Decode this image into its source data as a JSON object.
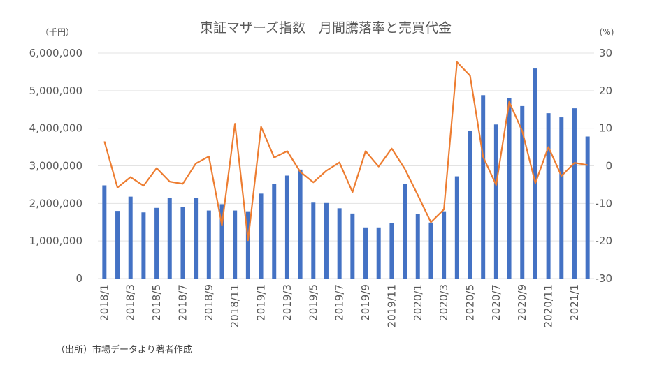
{
  "chart_data": {
    "type": "bar+line",
    "title": "東証マザーズ指数　月間騰落率と売買代金",
    "left_unit": "（千円）",
    "right_unit": "(%)",
    "source": "（出所）市場データより著者作成",
    "categories": [
      "2018/1",
      "2018/2",
      "2018/3",
      "2018/4",
      "2018/5",
      "2018/6",
      "2018/7",
      "2018/8",
      "2018/9",
      "2018/10",
      "2018/11",
      "2018/12",
      "2019/1",
      "2019/2",
      "2019/3",
      "2019/4",
      "2019/5",
      "2019/6",
      "2019/7",
      "2019/8",
      "2019/9",
      "2019/10",
      "2019/11",
      "2019/12",
      "2020/1",
      "2020/2",
      "2020/3",
      "2020/4",
      "2020/5",
      "2020/6",
      "2020/7",
      "2020/8",
      "2020/9",
      "2020/10",
      "2020/11",
      "2020/12",
      "2021/1",
      "2021/2"
    ],
    "x_tick_labels": [
      "2018/1",
      "",
      "2018/3",
      "",
      "2018/5",
      "",
      "2018/7",
      "",
      "2018/9",
      "",
      "2018/11",
      "",
      "2019/1",
      "",
      "2019/3",
      "",
      "2019/5",
      "",
      "2019/7",
      "",
      "2019/9",
      "",
      "2019/11",
      "",
      "2020/1",
      "",
      "2020/3",
      "",
      "2020/5",
      "",
      "2020/7",
      "",
      "2020/9",
      "",
      "2020/11",
      "",
      "2021/1",
      ""
    ],
    "left_axis": {
      "min": 0,
      "max": 6000000,
      "step": 1000000,
      "ticks": [
        "0",
        "1,000,000",
        "2,000,000",
        "3,000,000",
        "4,000,000",
        "5,000,000",
        "6,000,000"
      ]
    },
    "right_axis": {
      "min": -30,
      "max": 30,
      "step": 10,
      "ticks": [
        "-30",
        "-20",
        "-10",
        "0",
        "10",
        "20",
        "30"
      ]
    },
    "series": [
      {
        "name": "売買代金",
        "type": "bar",
        "axis": "left",
        "color": "#4472C4",
        "values": [
          2480000,
          1800000,
          2180000,
          1760000,
          1880000,
          2140000,
          1910000,
          2140000,
          1810000,
          1980000,
          1810000,
          1790000,
          2260000,
          2520000,
          2740000,
          2900000,
          2020000,
          2010000,
          1870000,
          1730000,
          1360000,
          1360000,
          1480000,
          2520000,
          1710000,
          1490000,
          1790000,
          2720000,
          3930000,
          4880000,
          4100000,
          4810000,
          4590000,
          5590000,
          4400000,
          4290000,
          4530000,
          3780000
        ]
      },
      {
        "name": "月間騰落率",
        "type": "line",
        "axis": "right",
        "color": "#ED7D31",
        "values": [
          6.5,
          -5.8,
          -3.0,
          -5.3,
          -0.6,
          -4.2,
          -4.8,
          0.6,
          2.5,
          -15.8,
          11.2,
          -19.8,
          10.4,
          2.2,
          3.9,
          -1.6,
          -4.4,
          -1.3,
          0.9,
          -7.0,
          3.9,
          -0.2,
          4.6,
          -0.8,
          -7.8,
          -15.0,
          -11.6,
          27.6,
          24.0,
          2.4,
          -5.1,
          17.0,
          9.2,
          -4.6,
          5.0,
          -2.7,
          0.8,
          0.2
        ]
      }
    ]
  }
}
